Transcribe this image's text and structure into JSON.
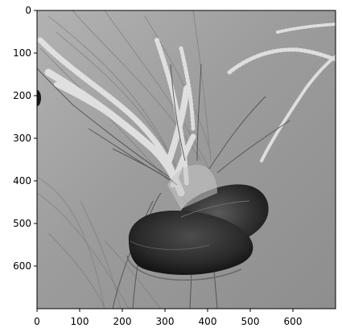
{
  "figure": {
    "type": "image",
    "colormap": "gray",
    "subject": "jellyfish"
  },
  "chart_data": {
    "type": "heatmap",
    "title": "",
    "xlabel": "",
    "ylabel": "",
    "xlim": [
      0,
      700
    ],
    "ylim": [
      700,
      0
    ],
    "x_ticks": [
      0,
      100,
      200,
      300,
      400,
      500,
      600
    ],
    "y_ticks": [
      0,
      100,
      200,
      300,
      400,
      500,
      600
    ],
    "x_tick_labels": [
      "0",
      "100",
      "200",
      "300",
      "400",
      "500",
      "600"
    ],
    "y_tick_labels": [
      "0",
      "100",
      "200",
      "300",
      "400",
      "500",
      "600"
    ],
    "grid": false,
    "legend": "none"
  }
}
